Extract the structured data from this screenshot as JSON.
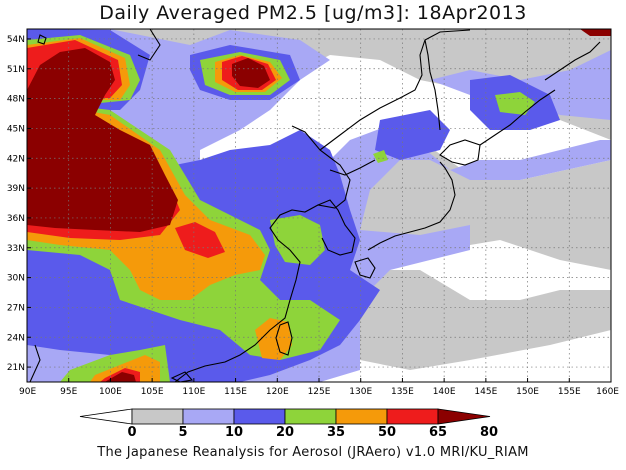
{
  "title": "Daily Averaged PM2.5 [ug/m3]: 18Apr2013",
  "credit": "The Japanese Reanalysis for Aerosol (JRAero) v1.0 MRI/KU_RIAM",
  "map": {
    "lon_labels": [
      "90E",
      "95E",
      "100E",
      "105E",
      "110E",
      "115E",
      "120E",
      "125E",
      "130E",
      "135E",
      "140E",
      "145E",
      "150E",
      "155E",
      "160E"
    ],
    "lat_labels": [
      "54N",
      "51N",
      "48N",
      "45N",
      "42N",
      "39N",
      "36N",
      "33N",
      "30N",
      "27N",
      "24N",
      "21N"
    ],
    "lon_range": [
      90,
      160
    ],
    "lat_range": [
      19.5,
      55
    ]
  },
  "legend": {
    "labels": [
      "0",
      "5",
      "10",
      "20",
      "35",
      "50",
      "65",
      "80"
    ],
    "colors": [
      "#ffffff",
      "#c8c8c8",
      "#a8a8f5",
      "#5a5aeb",
      "#8ed43a",
      "#f59a0a",
      "#ee1c1c",
      "#8b0000"
    ]
  }
}
